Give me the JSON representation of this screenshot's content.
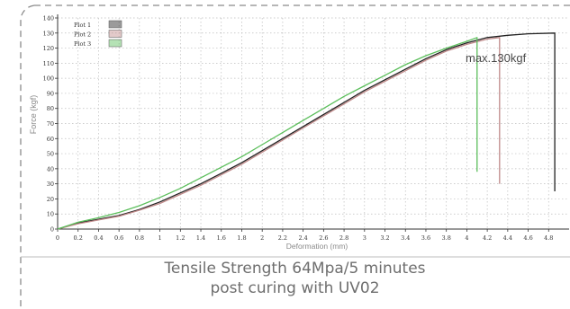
{
  "chart_data": {
    "type": "line",
    "ylabel": "Force (kgf)",
    "xlabel": "Deformation (mm)",
    "xlim": [
      0,
      5.0
    ],
    "ylim": [
      0,
      140
    ],
    "x_ticks": [
      "0",
      "0.2",
      "0.4",
      "0.6",
      "0.8",
      "1",
      "1.2",
      "1.4",
      "1.6",
      "1.8",
      "2",
      "2.2",
      "2.4",
      "2.6",
      "2.8",
      "3",
      "3.2",
      "3.4",
      "3.6",
      "3.8",
      "4",
      "4.2",
      "4.4",
      "4.6",
      "4.8"
    ],
    "y_ticks": [
      "0",
      "10",
      "20",
      "30",
      "40",
      "50",
      "60",
      "70",
      "80",
      "90",
      "100",
      "110",
      "120",
      "130",
      "140"
    ],
    "grid": true,
    "legend_position": "top-left",
    "annotation": "max.130kgf",
    "series": [
      {
        "name": "Plot 1",
        "color": "#222222",
        "x": [
          0,
          0.2,
          0.4,
          0.6,
          0.8,
          1.0,
          1.2,
          1.4,
          1.6,
          1.8,
          2.0,
          2.2,
          2.4,
          2.6,
          2.8,
          3.0,
          3.2,
          3.4,
          3.6,
          3.8,
          4.0,
          4.2,
          4.4,
          4.6,
          4.86,
          4.86
        ],
        "y": [
          0,
          4,
          6.5,
          9,
          13,
          18,
          24,
          30,
          37,
          44,
          52,
          60,
          68,
          76,
          84,
          92,
          99,
          106,
          113,
          119,
          123.5,
          127,
          128.5,
          129.5,
          130,
          25
        ]
      },
      {
        "name": "Plot 2",
        "color": "#c08a8a",
        "x": [
          0,
          0.2,
          0.4,
          0.6,
          0.8,
          1.0,
          1.2,
          1.4,
          1.6,
          1.8,
          2.0,
          2.2,
          2.4,
          2.6,
          2.8,
          3.0,
          3.2,
          3.4,
          3.6,
          3.8,
          4.0,
          4.2,
          4.32,
          4.32
        ],
        "y": [
          0,
          3.5,
          6,
          8.5,
          12.5,
          17,
          23,
          29,
          36,
          43,
          51,
          59,
          67,
          75,
          83,
          91,
          98,
          105,
          112,
          118,
          122.5,
          126,
          127,
          30
        ]
      },
      {
        "name": "Plot 3",
        "color": "#5cbf5c",
        "x": [
          0,
          0.2,
          0.4,
          0.6,
          0.8,
          1.0,
          1.2,
          1.4,
          1.6,
          1.8,
          2.0,
          2.2,
          2.4,
          2.6,
          2.8,
          3.0,
          3.2,
          3.4,
          3.6,
          3.8,
          4.0,
          4.1,
          4.1
        ],
        "y": [
          0,
          4.5,
          7.5,
          11,
          15.5,
          21,
          27,
          34,
          41,
          48,
          56,
          64,
          72,
          80,
          88,
          95,
          102,
          109,
          115,
          120,
          124.5,
          127,
          38
        ]
      }
    ]
  },
  "caption": {
    "line1": "Tensile Strength 64Mpa/5 minutes",
    "line2": "post curing with UV02"
  }
}
